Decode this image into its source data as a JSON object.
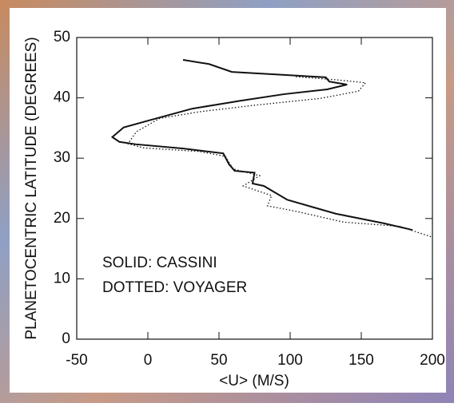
{
  "chart_data": {
    "type": "line",
    "xlabel": "<U> (M/S)",
    "ylabel": "PLANETOCENTRIC LATITUDE (DEGREES)",
    "xlim": [
      -50,
      200
    ],
    "xticks": [
      -50,
      0,
      50,
      100,
      150,
      200
    ],
    "ylim": [
      0,
      50
    ],
    "yticks": [
      0,
      10,
      20,
      30,
      40,
      50
    ],
    "series": [
      {
        "name": "SOLID: CASSINI",
        "color": "#111111",
        "style": "solid",
        "x": [
          24.7,
          43,
          59,
          125,
          127.5,
          140,
          126,
          95.5,
          64.6,
          31,
          3,
          -17,
          -25,
          -20,
          -8.4,
          25,
          53,
          57,
          61,
          75,
          73.6,
          81.5,
          98,
          132,
          166,
          186
        ],
        "y": [
          46.3,
          45.6,
          44.3,
          43.4,
          42.7,
          42.2,
          41.4,
          40.6,
          39.5,
          38.2,
          36.4,
          35.1,
          33.5,
          32.7,
          32.3,
          31.6,
          30.8,
          29.0,
          27.9,
          27.6,
          25.8,
          25.4,
          23.1,
          20.8,
          19.2,
          18.1
        ]
      },
      {
        "name": "DOTTED: VOYAGER",
        "color": "#111111",
        "style": "dotted",
        "x": [
          104,
          132,
          153,
          148,
          121,
          76,
          36.5,
          8.4,
          -8,
          -14,
          -3,
          36.5,
          54.5,
          60,
          78.6,
          67,
          87,
          84,
          104,
          137.6,
          177,
          200
        ],
        "y": [
          43.5,
          43.0,
          42.5,
          41.1,
          39.9,
          38.8,
          37.7,
          36.6,
          34.4,
          32.4,
          31.7,
          31.1,
          30.3,
          28.2,
          27.1,
          25.4,
          23.8,
          22.1,
          21.2,
          19.4,
          18.7,
          16.9
        ]
      }
    ]
  }
}
